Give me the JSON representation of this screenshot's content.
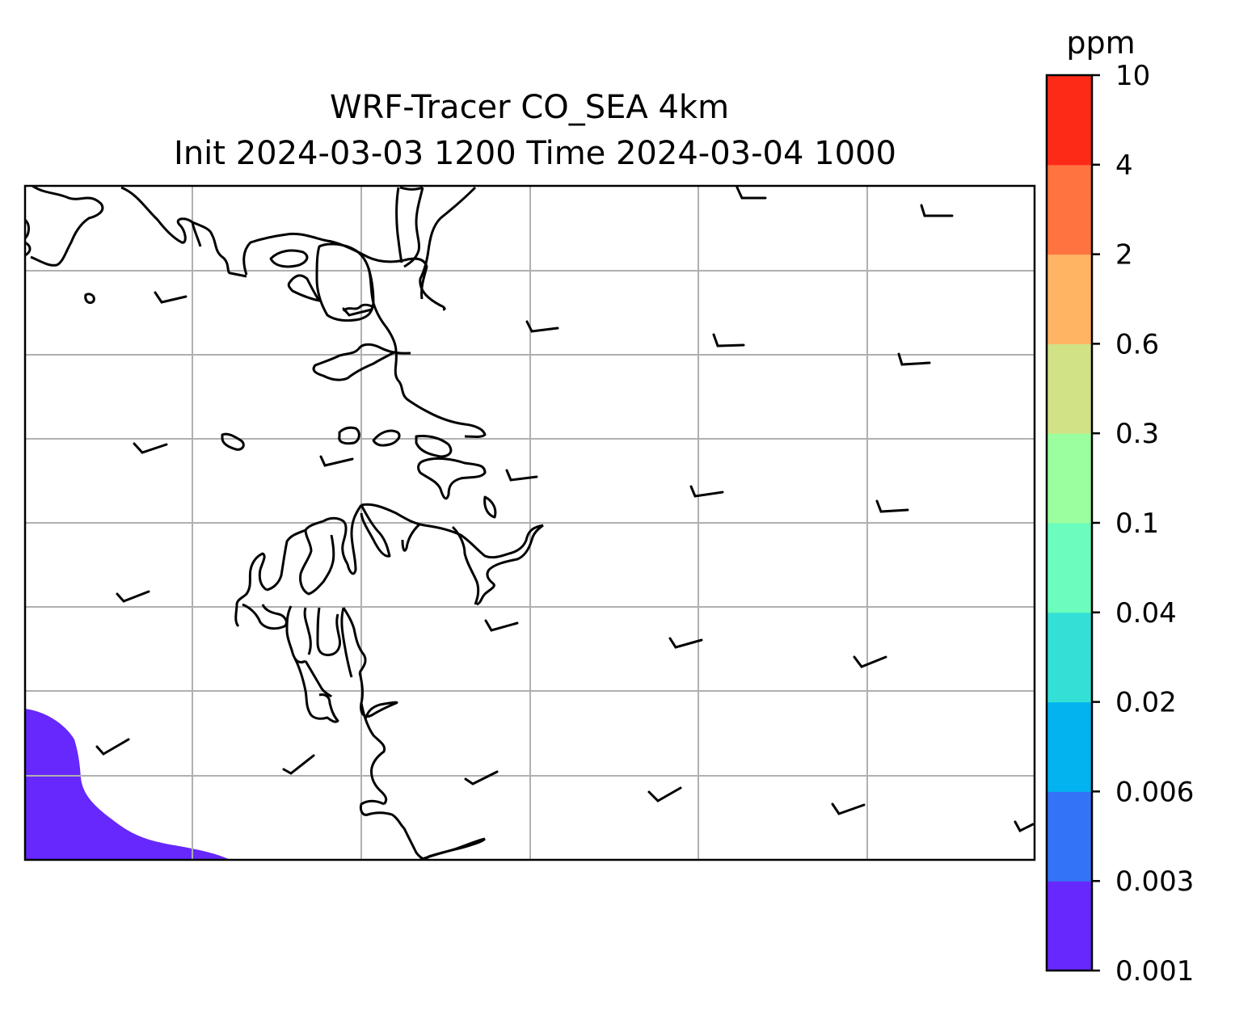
{
  "title_line1": "WRF-Tracer CO_SEA 4km",
  "title_line2": "Init 2024-03-03 1200 Time 2024-03-04 1000",
  "colorbar": {
    "units": "ppm",
    "ticks": [
      "0.001",
      "0.003",
      "0.006",
      "0.02",
      "0.04",
      "0.1",
      "0.3",
      "0.6",
      "2",
      "4",
      "10"
    ],
    "colors": [
      "#6628fd",
      "#3373f6",
      "#02b3ef",
      "#33e0d6",
      "#6afdbd",
      "#9bfe9f",
      "#d1e286",
      "#feb463",
      "#fe7340",
      "#fe2a18"
    ]
  },
  "map": {
    "grid": "on",
    "grid_color": "#b0b0b0",
    "coastline_color": "#000000",
    "shaded_level": "0.001-0.003",
    "wind_barbs": "on"
  }
}
